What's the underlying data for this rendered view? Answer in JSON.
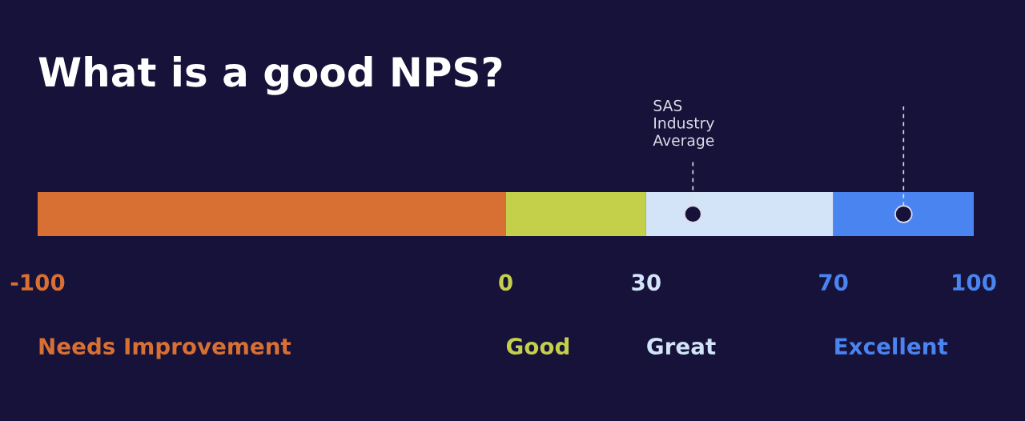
{
  "chart_data": {
    "type": "bar",
    "orientation": "horizontal",
    "stacked": true,
    "title": "What is a good NPS?",
    "categories": [
      null
    ],
    "series": [
      {
        "name": "Needs Improvement",
        "color": "#d97033",
        "values": [
          -100
        ]
      },
      {
        "name": "Good",
        "color": "#c5d04a",
        "values": [
          30
        ]
      },
      {
        "name": "Great",
        "color": "#d3e3f8",
        "values": [
          40
        ]
      },
      {
        "name": "Excellent",
        "color": "#4a84f0",
        "values": [
          30
        ]
      }
    ],
    "xlim": [
      -100,
      100
    ],
    "xticks": [
      -100,
      0,
      30,
      70,
      100
    ],
    "tick_labels": "x",
    "ref_lines": [
      {
        "axis": "x",
        "value": 40,
        "label": "SAS\nIndustry\nAverage",
        "line_style": "dashed",
        "color": "#dcdce8"
      },
      {
        "axis": "x",
        "value": 85,
        "line_style": "dashed",
        "color": "#dcdce8"
      }
    ]
  }
}
